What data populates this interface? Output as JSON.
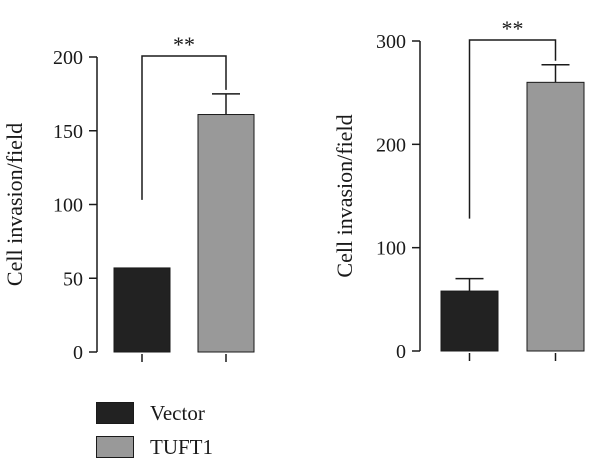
{
  "chart_data": [
    {
      "type": "bar",
      "categories": [
        "Vector",
        "TUFT1"
      ],
      "values": [
        57,
        161
      ],
      "errors": [
        0,
        14
      ],
      "ylabel": "Cell invasion/field",
      "ylim": [
        0,
        200
      ],
      "yticks": [
        0,
        50,
        100,
        150,
        200
      ],
      "significance": "**",
      "colors": [
        "#222222",
        "#999999"
      ]
    },
    {
      "type": "bar",
      "categories": [
        "Vector",
        "TUFT1"
      ],
      "values": [
        58,
        260
      ],
      "errors": [
        12,
        17
      ],
      "ylabel": "Cell invasion/field",
      "ylim": [
        0,
        300
      ],
      "yticks": [
        0,
        100,
        200,
        300
      ],
      "significance": "**",
      "colors": [
        "#222222",
        "#999999"
      ]
    }
  ],
  "legend": {
    "items": [
      {
        "label": "Vector",
        "color": "#222222"
      },
      {
        "label": "TUFT1",
        "color": "#999999"
      }
    ]
  }
}
